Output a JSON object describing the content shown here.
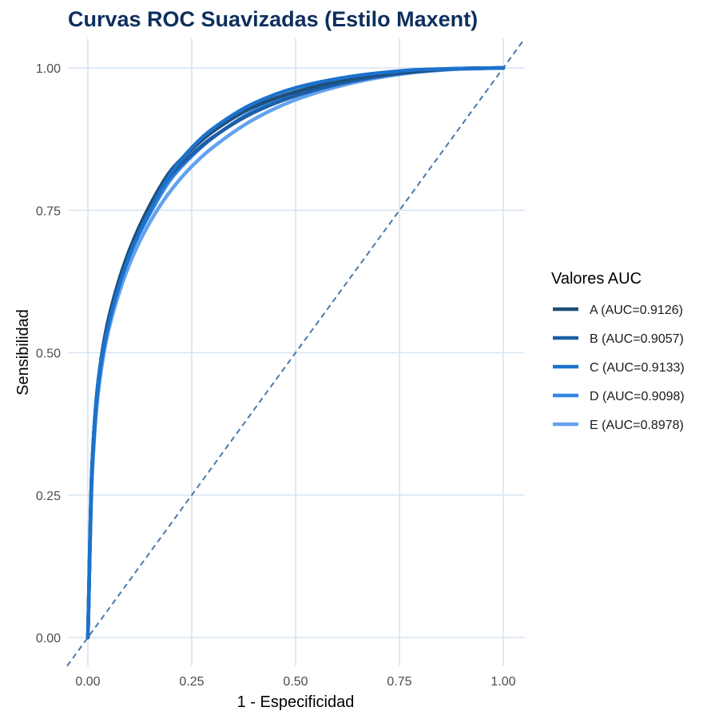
{
  "chart_data": {
    "type": "line",
    "title": "Curvas ROC Suavizadas (Estilo Maxent)",
    "xlabel": "1 - Especificidad",
    "ylabel": "Sensibilidad",
    "xlim": [
      0,
      1
    ],
    "ylim": [
      0,
      1
    ],
    "x_ticks": [
      "0.00",
      "0.25",
      "0.50",
      "0.75",
      "1.00"
    ],
    "y_ticks": [
      "0.00",
      "0.25",
      "0.50",
      "0.75",
      "1.00"
    ],
    "grid": true,
    "legend_title": "Valores AUC",
    "legend_position": "right",
    "reference_line": {
      "type": "diagonal",
      "style": "dashed",
      "color": "#4a78a8"
    },
    "series": [
      {
        "name": "A (AUC=0.9126)",
        "color": "#1f4e79",
        "x": [
          0,
          0.01,
          0.025,
          0.05,
          0.1,
          0.15,
          0.2,
          0.25,
          0.3,
          0.4,
          0.5,
          0.6,
          0.7,
          0.8,
          0.9,
          1.0
        ],
        "y": [
          0,
          0.3,
          0.45,
          0.56,
          0.68,
          0.76,
          0.82,
          0.857,
          0.888,
          0.932,
          0.958,
          0.976,
          0.988,
          0.995,
          0.999,
          1.0
        ]
      },
      {
        "name": "B (AUC=0.9057)",
        "color": "#1b5fa8",
        "x": [
          0,
          0.01,
          0.025,
          0.05,
          0.1,
          0.15,
          0.2,
          0.25,
          0.3,
          0.4,
          0.5,
          0.6,
          0.7,
          0.8,
          0.9,
          1.0
        ],
        "y": [
          0,
          0.3,
          0.45,
          0.56,
          0.68,
          0.755,
          0.812,
          0.848,
          0.878,
          0.922,
          0.951,
          0.971,
          0.985,
          0.994,
          0.999,
          1.0
        ]
      },
      {
        "name": "C (AUC=0.9133)",
        "color": "#1c72cc",
        "x": [
          0,
          0.01,
          0.025,
          0.05,
          0.1,
          0.15,
          0.2,
          0.25,
          0.3,
          0.4,
          0.5,
          0.6,
          0.7,
          0.8,
          0.9,
          1.0
        ],
        "y": [
          0,
          0.3,
          0.45,
          0.55,
          0.67,
          0.75,
          0.815,
          0.86,
          0.893,
          0.938,
          0.965,
          0.981,
          0.991,
          0.997,
          0.999,
          1.0
        ]
      },
      {
        "name": "D (AUC=0.9098)",
        "color": "#3385e0",
        "x": [
          0,
          0.01,
          0.025,
          0.05,
          0.1,
          0.15,
          0.2,
          0.25,
          0.3,
          0.4,
          0.5,
          0.6,
          0.7,
          0.8,
          0.9,
          1.0
        ],
        "y": [
          0,
          0.29,
          0.44,
          0.55,
          0.67,
          0.745,
          0.805,
          0.845,
          0.877,
          0.925,
          0.955,
          0.975,
          0.988,
          0.995,
          0.999,
          1.0
        ]
      },
      {
        "name": "E (AUC=0.8978)",
        "color": "#63a2ef",
        "x": [
          0,
          0.01,
          0.025,
          0.05,
          0.1,
          0.15,
          0.2,
          0.25,
          0.3,
          0.4,
          0.5,
          0.6,
          0.7,
          0.8,
          0.9,
          1.0
        ],
        "y": [
          0,
          0.28,
          0.43,
          0.54,
          0.655,
          0.73,
          0.785,
          0.827,
          0.86,
          0.91,
          0.944,
          0.967,
          0.983,
          0.993,
          0.998,
          1.0
        ]
      }
    ]
  }
}
